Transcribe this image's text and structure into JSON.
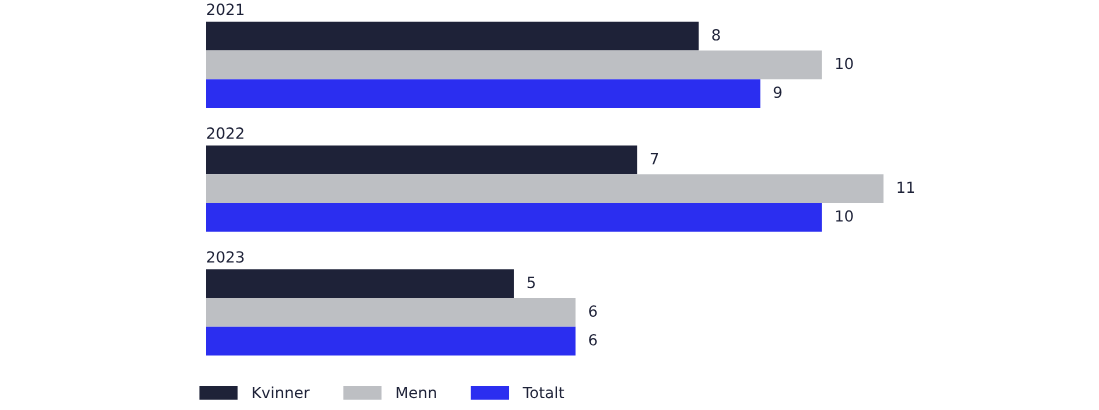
{
  "chart_data": {
    "type": "bar",
    "orientation": "horizontal",
    "categories": [
      "2021",
      "2022",
      "2023"
    ],
    "series": [
      {
        "name": "Kvinner",
        "color": "#1e2238",
        "values": [
          8,
          7,
          5
        ]
      },
      {
        "name": "Menn",
        "color": "#bdbfc3",
        "values": [
          10,
          11,
          6
        ]
      },
      {
        "name": "Totalt",
        "color": "#2b2ef0",
        "values": [
          9,
          10,
          6
        ]
      }
    ],
    "data_labels": true,
    "legend": "bottom left"
  }
}
